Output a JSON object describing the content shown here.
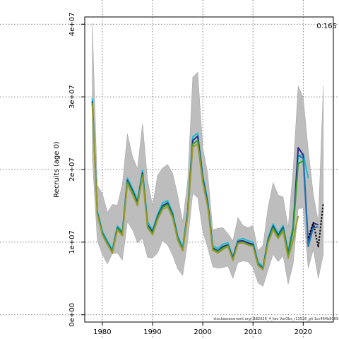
{
  "chart_data": {
    "type": "line",
    "ylabel": "Recruits (age 0)",
    "corner_label": "0.165",
    "footnote": "stockassessment.org/ BB2026_4_kes VarObs_r13526_git 1cc464b8069",
    "xlim": [
      1976.5,
      2026
    ],
    "ylim": [
      -1000000,
      41000000
    ],
    "grid": true,
    "x_ticks": [
      1980,
      1990,
      2000,
      2010,
      2020
    ],
    "x_tick_labels": [
      "1980",
      "1990",
      "2000",
      "2010",
      "2020"
    ],
    "y_ticks": [
      0,
      10000000,
      20000000,
      30000000,
      40000000
    ],
    "y_tick_labels": [
      "0e+00",
      "1e+07",
      "2e+07",
      "3e+07",
      "4e+07"
    ],
    "x": [
      1978,
      1979,
      1980,
      1981,
      1982,
      1983,
      1984,
      1985,
      1986,
      1987,
      1988,
      1989,
      1990,
      1991,
      1992,
      1993,
      1994,
      1995,
      1996,
      1997,
      1998,
      1999,
      2000,
      2001,
      2002,
      2003,
      2004,
      2005,
      2006,
      2007,
      2008,
      2009,
      2010,
      2011,
      2012,
      2013,
      2014,
      2015,
      2016,
      2017,
      2018,
      2019,
      2020,
      2021,
      2022,
      2023,
      2024
    ],
    "ci_lower": [
      21500000,
      10200000,
      8300000,
      7000000,
      8400000,
      8500000,
      7500000,
      12800000,
      11700000,
      9900000,
      10500000,
      7900000,
      7800000,
      8500000,
      10200000,
      9600000,
      8200000,
      6300000,
      5400000,
      10100000,
      16700000,
      16100000,
      11500000,
      9200000,
      6600000,
      6400000,
      6500000,
      6700000,
      5000000,
      7200000,
      7400000,
      7300000,
      6500000,
      4400000,
      3900000,
      6200000,
      8300000,
      7300000,
      8100000,
      4200000,
      7000000,
      14600000,
      14700000,
      6400000,
      9000000,
      5000000,
      8300000
    ],
    "ci_upper": [
      40200000,
      17800000,
      16700000,
      14100000,
      15200000,
      15100000,
      18000000,
      24900000,
      21800000,
      20100000,
      26300000,
      18600000,
      15000000,
      19200000,
      20200000,
      20700000,
      19500000,
      16500000,
      12800000,
      18600000,
      32700000,
      33400000,
      23000000,
      19400000,
      11700000,
      11900000,
      12000000,
      11200000,
      10200000,
      13400000,
      12300000,
      12000000,
      12300000,
      8800000,
      9600000,
      14800000,
      18200000,
      16500000,
      16200000,
      12000000,
      20000000,
      31500000,
      29900000,
      22800000,
      16600000,
      12800000,
      31500000
    ],
    "series": [
      {
        "color": "#17becf",
        "x": [
          1978,
          1979,
          1980,
          1981,
          1982,
          1983,
          1984,
          1985,
          1986,
          1987,
          1988,
          1989,
          1990,
          1991,
          1992,
          1993,
          1994,
          1995,
          1996,
          1997,
          1998,
          1999,
          2000,
          2001,
          2002,
          2003,
          2004,
          2005,
          2006,
          2007,
          2008,
          2009,
          2010,
          2011,
          2012,
          2013,
          2014,
          2015,
          2016,
          2017,
          2018,
          2019,
          2020,
          2021
        ],
        "values": [
          29800000,
          14300000,
          11500000,
          10200000,
          9000000,
          12200000,
          11500000,
          18800000,
          17400000,
          15800000,
          19900000,
          12800000,
          11700000,
          13800000,
          15400000,
          15700000,
          14100000,
          10900000,
          9300000,
          14400000,
          24500000,
          25000000,
          19200000,
          15700000,
          9500000,
          9100000,
          9700000,
          9900000,
          8000000,
          10300000,
          10500000,
          10200000,
          10000000,
          7300000,
          6600000,
          10600000,
          12500000,
          11200000,
          12300000,
          8700000,
          12300000,
          21700000,
          22200000,
          18800000
        ]
      },
      {
        "color": "#2b2b8c",
        "x": [
          1978,
          1979,
          1980,
          1981,
          1982,
          1983,
          1984,
          1985,
          1986,
          1987,
          1988,
          1989,
          1990,
          1991,
          1992,
          1993,
          1994,
          1995,
          1996,
          1997,
          1998,
          1999,
          2000,
          2001,
          2002,
          2003,
          2004,
          2005,
          2006,
          2007,
          2008,
          2009,
          2010,
          2011,
          2012,
          2013,
          2014,
          2015,
          2016,
          2017,
          2018,
          2019,
          2020,
          2021,
          2022,
          2023
        ],
        "values": [
          29400000,
          14100000,
          11200000,
          9900000,
          8700000,
          12000000,
          11200000,
          18500000,
          17100000,
          15400000,
          19500000,
          12400000,
          11400000,
          13500000,
          15000000,
          15400000,
          13800000,
          10600000,
          9000000,
          14100000,
          24000000,
          24600000,
          18800000,
          15300000,
          9200000,
          8800000,
          9400000,
          9600000,
          7800000,
          10100000,
          10200000,
          9900000,
          9700000,
          7000000,
          6400000,
          10300000,
          12200000,
          10900000,
          12000000,
          8400000,
          11900000,
          23000000,
          22000000,
          9900000,
          12600000,
          12400000
        ]
      },
      {
        "color": "#1f77b4",
        "x": [
          2019,
          2020,
          2021,
          2022,
          2023
        ],
        "values": [
          22000000,
          21500000,
          9400000,
          12000000,
          12100000
        ]
      },
      {
        "color": "#000000",
        "dashed": true,
        "x": [
          2021,
          2022,
          2023,
          2024
        ],
        "values": [
          10600000,
          12700000,
          9300000,
          15400000
        ]
      },
      {
        "color": "#2ca02c",
        "x": [
          1978,
          1979,
          1980,
          1981,
          1982,
          1983,
          1984,
          1985,
          1986,
          1987,
          1988,
          1989,
          1990,
          1991,
          1992,
          1993,
          1994,
          1995,
          1996,
          1997,
          1998,
          1999,
          2000,
          2001,
          2002,
          2003,
          2004,
          2005,
          2006,
          2007,
          2008,
          2009,
          2010,
          2011,
          2012,
          2013,
          2014,
          2015,
          2016,
          2017,
          2018,
          2019,
          2020
        ],
        "values": [
          29200000,
          14000000,
          11100000,
          9800000,
          8600000,
          11900000,
          11100000,
          18300000,
          16900000,
          15200000,
          19300000,
          12200000,
          11200000,
          13300000,
          14800000,
          15200000,
          13600000,
          10500000,
          8900000,
          13900000,
          23500000,
          24000000,
          18500000,
          15000000,
          9000000,
          8700000,
          9200000,
          9500000,
          7600000,
          9900000,
          10000000,
          9700000,
          9500000,
          6900000,
          6300000,
          10100000,
          12000000,
          10700000,
          11800000,
          8200000,
          11700000,
          20800000,
          21200000
        ]
      },
      {
        "color": "#9a9a2a",
        "x": [
          1978,
          1979,
          1980,
          1981,
          1982,
          1983,
          1984,
          1985,
          1986,
          1987,
          1988,
          1989,
          1990,
          1991,
          1992,
          1993,
          1994,
          1995,
          1996,
          1997,
          1998,
          1999,
          2000,
          2001,
          2002,
          2003,
          2004,
          2005,
          2006,
          2007,
          2008,
          2009,
          2010,
          2011,
          2012,
          2013,
          2014,
          2015,
          2016,
          2017,
          2018,
          2019
        ],
        "values": [
          28900000,
          13800000,
          11000000,
          9700000,
          8500000,
          11700000,
          10900000,
          18000000,
          16600000,
          15000000,
          19000000,
          12000000,
          11000000,
          13100000,
          14500000,
          14900000,
          13400000,
          10300000,
          8800000,
          13700000,
          23100000,
          23500000,
          18200000,
          14800000,
          8900000,
          8500000,
          9000000,
          9400000,
          7500000,
          9800000,
          9900000,
          9600000,
          9400000,
          6800000,
          6200000,
          9900000,
          11700000,
          10500000,
          11500000,
          7800000,
          10300000,
          13600000
        ]
      }
    ]
  }
}
